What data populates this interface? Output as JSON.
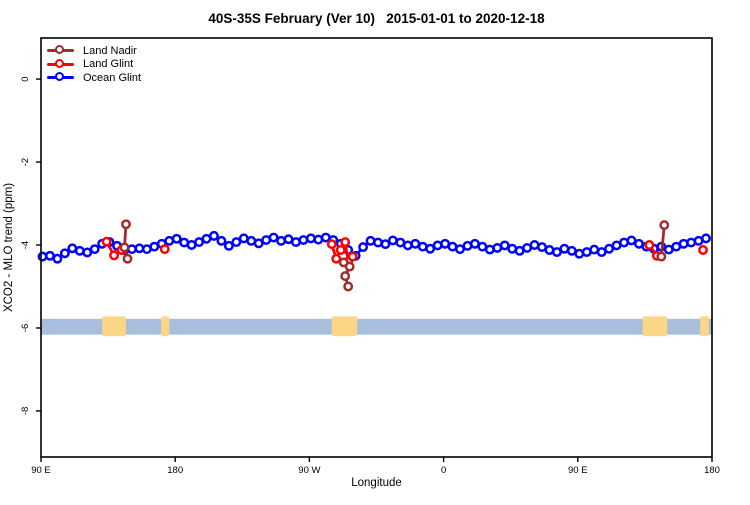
{
  "title": "40S-35S February (Ver 10)   2015-01-01 to 2020-12-18",
  "colors": {
    "land_nadir": "#a02c2c",
    "land_glint": "#ff0000",
    "ocean_glint": "#0000ff",
    "map_ocean": "#a8bedd",
    "map_land": "#fbd687",
    "axis": "#000000"
  },
  "chart_data": {
    "type": "scatter",
    "title": "40S-35S February (Ver 10)   2015-01-01 to 2020-12-18",
    "xlabel": "Longitude",
    "ylabel": "XCO2 - MLO trend (ppm)",
    "xlim": [
      90,
      540
    ],
    "ylim": [
      -9.11,
      0.99
    ],
    "grid": false,
    "legend_position": "top-left",
    "x_ticks": [
      {
        "pos": 90,
        "label": "90 E"
      },
      {
        "pos": 180,
        "label": "180"
      },
      {
        "pos": 270,
        "label": "90 W"
      },
      {
        "pos": 360,
        "label": "0"
      },
      {
        "pos": 450,
        "label": "90 E"
      },
      {
        "pos": 540,
        "label": "180"
      }
    ],
    "y_ticks": [
      {
        "pos": 0,
        "label": "0"
      },
      {
        "pos": -2,
        "label": "-2"
      },
      {
        "pos": -4,
        "label": "-4"
      },
      {
        "pos": -6,
        "label": "-6"
      },
      {
        "pos": -8,
        "label": "-8"
      }
    ],
    "map_band": {
      "v_top": -5.78,
      "v_bottom": -6.16,
      "patch_v_top": -5.72,
      "patch_v_bottom": -6.2,
      "land_patches_lon": [
        [
          131,
          147
        ],
        [
          170.5,
          176
        ],
        [
          285,
          302
        ],
        [
          493.5,
          510
        ],
        [
          532,
          538
        ]
      ]
    },
    "series": [
      {
        "name": "Ocean Glint",
        "color_key": "ocean_glint",
        "style": "line-circle",
        "x_start": 91,
        "x_step": 5,
        "values": [
          -4.28,
          -4.26,
          -4.33,
          -4.2,
          -4.08,
          -4.14,
          -4.18,
          -4.1,
          -3.97,
          -3.93,
          -4.02,
          -4.12,
          -4.1,
          -4.08,
          -4.1,
          -4.04,
          -3.97,
          -3.9,
          -3.85,
          -3.94,
          -4.0,
          -3.93,
          -3.85,
          -3.78,
          -3.9,
          -4.02,
          -3.93,
          -3.84,
          -3.9,
          -3.96,
          -3.88,
          -3.82,
          -3.9,
          -3.86,
          -3.93,
          -3.88,
          -3.84,
          -3.87,
          -3.82,
          -3.88,
          -3.97,
          -4.12,
          -4.26,
          -4.05,
          -3.9,
          -3.94,
          -3.98,
          -3.89,
          -3.94,
          -4.01,
          -3.97,
          -4.04,
          -4.09,
          -4.01,
          -3.97,
          -4.04,
          -4.1,
          -4.02,
          -3.97,
          -4.04,
          -4.11,
          -4.07,
          -4.01,
          -4.09,
          -4.14,
          -4.07,
          -4.0,
          -4.05,
          -4.12,
          -4.17,
          -4.09,
          -4.14,
          -4.21,
          -4.17,
          -4.11,
          -4.17,
          -4.09,
          -4.01,
          -3.94,
          -3.89,
          -3.97,
          -4.04,
          -4.09,
          -4.04,
          -4.11,
          -4.04,
          -3.97,
          -3.94,
          -3.9,
          -3.84
        ]
      },
      {
        "name": "Land Glint",
        "color_key": "land_glint",
        "style": "line-circle",
        "clusters": [
          [
            [
              134,
              -3.92
            ],
            [
              139,
              -4.25
            ],
            [
              144,
              -4.12
            ]
          ],
          [
            [
              173,
              -4.1
            ]
          ],
          [
            [
              285,
              -3.98
            ],
            [
              288,
              -4.33
            ],
            [
              291,
              -4.12
            ],
            [
              294,
              -3.93
            ],
            [
              296,
              -4.4
            ],
            [
              299,
              -4.28
            ]
          ],
          [
            [
              498,
              -4.0
            ],
            [
              503,
              -4.26
            ]
          ],
          [
            [
              534,
              -4.12
            ]
          ]
        ]
      },
      {
        "name": "Land Nadir",
        "color_key": "land_nadir",
        "style": "line-circle",
        "clusters": [
          [
            [
              147,
              -3.5
            ],
            [
              146,
              -4.06
            ],
            [
              148,
              -4.33
            ]
          ],
          [
            [
              293,
              -4.42
            ],
            [
              297,
              -4.52
            ],
            [
              294,
              -4.75
            ],
            [
              296,
              -5.0
            ]
          ],
          [
            [
              508,
              -3.52
            ],
            [
              506,
              -4.28
            ]
          ]
        ]
      }
    ]
  },
  "legend": {
    "items": [
      {
        "label": "Land Nadir",
        "color_key": "land_nadir"
      },
      {
        "label": "Land Glint",
        "color_key": "land_glint"
      },
      {
        "label": "Ocean Glint",
        "color_key": "ocean_glint"
      }
    ]
  }
}
